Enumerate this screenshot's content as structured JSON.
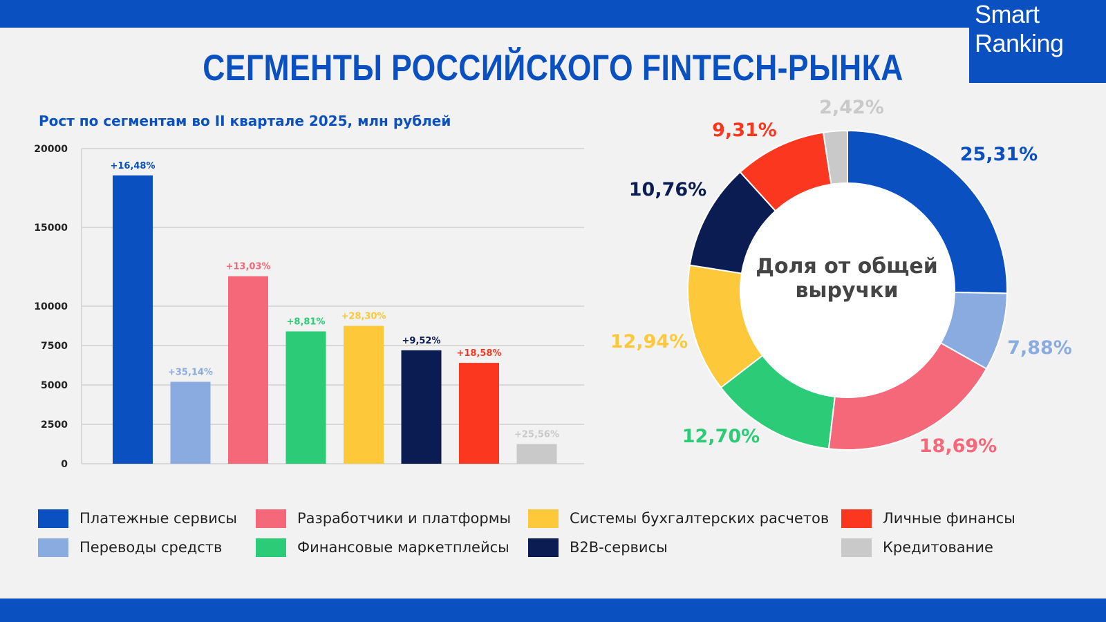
{
  "header": {
    "title": "СЕГМЕНТЫ РОССИЙСКОГО FINTECH-РЫНКА",
    "logo_line1": "Smart",
    "logo_line2": "Ranking"
  },
  "colors": {
    "brand": "#0a50c0",
    "background": "#f2f2f2"
  },
  "chart_data": [
    {
      "type": "bar",
      "title": "Рост по сегментам во II квартале 2025, млн рублей",
      "categories": [
        "Платежные сервисы",
        "Переводы средств",
        "Разработчики и платформы",
        "Финансовые маркетплейсы",
        "Системы бухгалтерских расчетов",
        "B2B-сервисы",
        "Личные финансы",
        "Кредитование"
      ],
      "values": [
        18300,
        5200,
        11900,
        8400,
        8750,
        7200,
        6400,
        1250
      ],
      "labels": [
        "+16,48%",
        "+35,14%",
        "+13,03%",
        "+8,81%",
        "+28,30%",
        "+9,52%",
        "+18,58%",
        "+25,56%"
      ],
      "colors": [
        "#0a50c0",
        "#8aabe0",
        "#f5687a",
        "#2bcb78",
        "#fdc83a",
        "#0b1c52",
        "#fc3720",
        "#c9c9c9"
      ],
      "label_colors": [
        "#0a50c0",
        "#8aabe0",
        "#f5687a",
        "#2bcb78",
        "#fdc83a",
        "#0b1c52",
        "#fc3720",
        "#c9c9c9"
      ],
      "yticks": [
        "0",
        "2500",
        "5000",
        "7500",
        "10000",
        "15000",
        "20000"
      ],
      "ylim": [
        0,
        20000
      ],
      "grid": true
    },
    {
      "type": "pie",
      "center_label": "Доля от общей выручки",
      "categories": [
        "Платежные сервисы",
        "Переводы средств",
        "Разработчики и платформы",
        "Финансовые маркетплейсы",
        "Системы бухгалтерских расчетов",
        "B2B-сервисы",
        "Личные финансы",
        "Кредитование"
      ],
      "values": [
        25.31,
        7.88,
        18.69,
        12.7,
        12.94,
        10.76,
        9.31,
        2.42
      ],
      "labels": [
        "25,31%",
        "7,88%",
        "18,69%",
        "12,70%",
        "12,94%",
        "10,76%",
        "9,31%",
        "2,42%"
      ],
      "colors": [
        "#0a50c0",
        "#8aabe0",
        "#f5687a",
        "#2bcb78",
        "#fdc83a",
        "#0b1c52",
        "#fc3720",
        "#c9c9c9"
      ]
    }
  ],
  "legend": [
    {
      "label": "Платежные сервисы",
      "color": "#0a50c0"
    },
    {
      "label": "Переводы средств",
      "color": "#8aabe0"
    },
    {
      "label": "Разработчики и платформы",
      "color": "#f5687a"
    },
    {
      "label": "Финансовые маркетплейсы",
      "color": "#2bcb78"
    },
    {
      "label": "Системы бухгалтерских расчетов",
      "color": "#fdc83a"
    },
    {
      "label": "B2B-сервисы",
      "color": "#0b1c52"
    },
    {
      "label": "Личные финансы",
      "color": "#fc3720"
    },
    {
      "label": "Кредитование",
      "color": "#c9c9c9"
    }
  ]
}
